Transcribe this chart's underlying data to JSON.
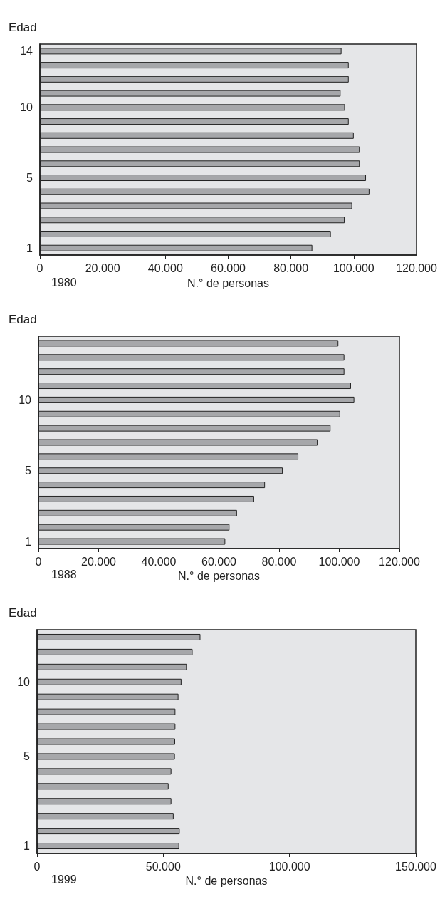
{
  "chart_data": [
    {
      "type": "bar",
      "orientation": "horizontal",
      "title": "1980",
      "xlabel": "N.° de personas",
      "ylabel": "Edad",
      "categories": [
        "14",
        null,
        null,
        null,
        "10",
        null,
        null,
        null,
        null,
        "5",
        null,
        null,
        null,
        null,
        "1"
      ],
      "values": [
        96100,
        98400,
        98400,
        95800,
        97200,
        98400,
        100000,
        101900,
        101900,
        103900,
        105000,
        99500,
        97100,
        92700,
        86800
      ],
      "color": "#a6a7aa",
      "xlim": [
        0,
        120000
      ],
      "xticks": [
        {
          "value": 0,
          "label": "0"
        },
        {
          "value": 20000,
          "label": "20.000"
        },
        {
          "value": 40000,
          "label": "40.000"
        },
        {
          "value": 60000,
          "label": "60.000"
        },
        {
          "value": 80000,
          "label": "80.000"
        },
        {
          "value": 100000,
          "label": "100.000"
        },
        {
          "value": 120000,
          "label": "120.000"
        }
      ],
      "grid": false
    },
    {
      "type": "bar",
      "orientation": "horizontal",
      "title": "1988",
      "xlabel": "N.° de personas",
      "ylabel": "Edad",
      "categories": [
        null,
        null,
        null,
        null,
        "10",
        null,
        null,
        null,
        null,
        "5",
        null,
        null,
        null,
        null,
        "1"
      ],
      "values": [
        99700,
        101700,
        101700,
        103900,
        105000,
        100300,
        97100,
        92800,
        86400,
        81200,
        75300,
        71700,
        66000,
        63500,
        62100
      ],
      "color": "#a6a7aa",
      "xlim": [
        0,
        120000
      ],
      "xticks": [
        {
          "value": 0,
          "label": "0"
        },
        {
          "value": 20000,
          "label": "20.000"
        },
        {
          "value": 40000,
          "label": "40.000"
        },
        {
          "value": 60000,
          "label": "60.000"
        },
        {
          "value": 80000,
          "label": "80.000"
        },
        {
          "value": 100000,
          "label": "100.000"
        },
        {
          "value": 120000,
          "label": "120.000"
        }
      ],
      "grid": false
    },
    {
      "type": "bar",
      "orientation": "horizontal",
      "title": "1999",
      "xlabel": "N.° de personas",
      "ylabel": "Edad",
      "categories": [
        null,
        null,
        null,
        "10",
        null,
        null,
        null,
        null,
        "5",
        null,
        null,
        null,
        null,
        null,
        "1"
      ],
      "values": [
        64700,
        61600,
        59300,
        57200,
        56000,
        54800,
        54800,
        54700,
        54600,
        53200,
        52100,
        53200,
        54100,
        56500,
        56300
      ],
      "color": "#a6a7aa",
      "xlim": [
        0,
        150000
      ],
      "xticks": [
        {
          "value": 0,
          "label": "0"
        },
        {
          "value": 50000,
          "label": "50.000"
        },
        {
          "value": 100000,
          "label": "100.000"
        },
        {
          "value": 150000,
          "label": "150.000"
        }
      ],
      "grid": false
    }
  ]
}
